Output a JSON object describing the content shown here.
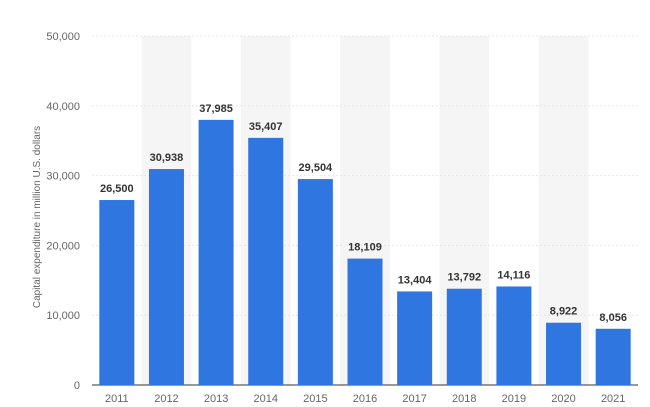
{
  "chart_data": {
    "type": "bar",
    "categories": [
      "2011",
      "2012",
      "2013",
      "2014",
      "2015",
      "2016",
      "2017",
      "2018",
      "2019",
      "2020",
      "2021"
    ],
    "values": [
      26500,
      30938,
      37985,
      35407,
      29504,
      18109,
      13404,
      13792,
      14116,
      8922,
      8056
    ],
    "value_labels": [
      "26,500",
      "30,938",
      "37,985",
      "35,407",
      "29,504",
      "18,109",
      "13,404",
      "13,792",
      "14,116",
      "8,922",
      "8,056"
    ],
    "title": "",
    "xlabel": "",
    "ylabel": "Capital expenditure in million U.S. dollars",
    "ylim": [
      0,
      50000
    ],
    "yticks": [
      0,
      10000,
      20000,
      30000,
      40000,
      50000
    ],
    "ytick_labels": [
      "0",
      "10,000",
      "20,000",
      "30,000",
      "40,000",
      "50,000"
    ],
    "grid": true,
    "legend": "none",
    "bar_color": "#2f76e0",
    "alt_band_color": "#f5f5f5",
    "grid_color": "#e6e6e6"
  }
}
